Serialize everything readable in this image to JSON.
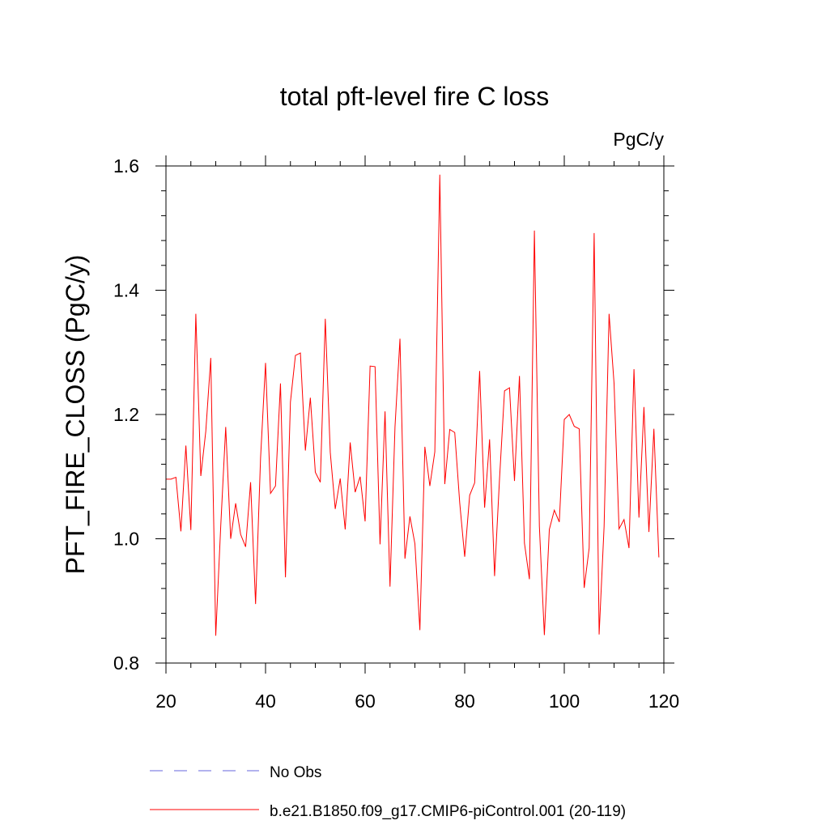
{
  "chart_data": {
    "type": "line",
    "title": "total pft-level fire C loss",
    "units_label": "PgC/y",
    "xlabel": "",
    "ylabel": "PFT_FIRE_CLOSS  (PgC/y)",
    "xlim": [
      20,
      120
    ],
    "ylim": [
      0.8,
      1.6
    ],
    "xticks": [
      20,
      40,
      60,
      80,
      100,
      120
    ],
    "yticks": [
      0.8,
      1.0,
      1.2,
      1.4,
      1.6
    ],
    "xtick_labels": [
      "20",
      "40",
      "60",
      "80",
      "100",
      "120"
    ],
    "ytick_labels": [
      "0.8",
      "1.0",
      "1.2",
      "1.4",
      "1.6"
    ],
    "grid": false,
    "legend_position": "bottom-left",
    "series": [
      {
        "name": "No Obs",
        "color": "#6666dd",
        "style": "dashed",
        "x": [],
        "values": []
      },
      {
        "name": "b.e21.B1850.f09_g17.CMIP6-piControl.001 (20-119)",
        "color": "#ff0000",
        "style": "solid",
        "x": [
          20,
          21,
          22,
          23,
          24,
          25,
          26,
          27,
          28,
          29,
          30,
          31,
          32,
          33,
          34,
          35,
          36,
          37,
          38,
          39,
          40,
          41,
          42,
          43,
          44,
          45,
          46,
          47,
          48,
          49,
          50,
          51,
          52,
          53,
          54,
          55,
          56,
          57,
          58,
          59,
          60,
          61,
          62,
          63,
          64,
          65,
          66,
          67,
          68,
          69,
          70,
          71,
          72,
          73,
          74,
          75,
          76,
          77,
          78,
          79,
          80,
          81,
          82,
          83,
          84,
          85,
          86,
          87,
          88,
          89,
          90,
          91,
          92,
          93,
          94,
          95,
          96,
          97,
          98,
          99,
          100,
          101,
          102,
          103,
          104,
          105,
          106,
          107,
          108,
          109,
          110,
          111,
          112,
          113,
          114,
          115,
          116,
          117,
          118,
          119
        ],
        "values": [
          1.096,
          1.096,
          1.099,
          1.012,
          1.15,
          1.014,
          1.362,
          1.101,
          1.173,
          1.291,
          0.844,
          1.02,
          1.18,
          1.0,
          1.057,
          1.007,
          0.987,
          1.091,
          0.895,
          1.13,
          1.283,
          1.073,
          1.085,
          1.25,
          0.938,
          1.22,
          1.295,
          1.299,
          1.142,
          1.227,
          1.107,
          1.091,
          1.354,
          1.139,
          1.048,
          1.097,
          1.015,
          1.155,
          1.075,
          1.1,
          1.028,
          1.278,
          1.277,
          0.991,
          1.205,
          0.923,
          1.18,
          1.322,
          0.968,
          1.036,
          0.992,
          0.853,
          1.148,
          1.085,
          1.14,
          1.586,
          1.088,
          1.176,
          1.171,
          1.058,
          0.971,
          1.07,
          1.09,
          1.27,
          1.05,
          1.16,
          0.94,
          1.097,
          1.238,
          1.243,
          1.093,
          1.262,
          0.993,
          0.935,
          1.496,
          1.02,
          0.845,
          1.015,
          1.046,
          1.027,
          1.192,
          1.2,
          1.181,
          1.177,
          0.921,
          0.985,
          1.492,
          0.846,
          1.02,
          1.362,
          1.25,
          1.016,
          1.031,
          0.985,
          1.273,
          1.034,
          1.212,
          1.011,
          1.177,
          0.97
        ]
      }
    ]
  }
}
